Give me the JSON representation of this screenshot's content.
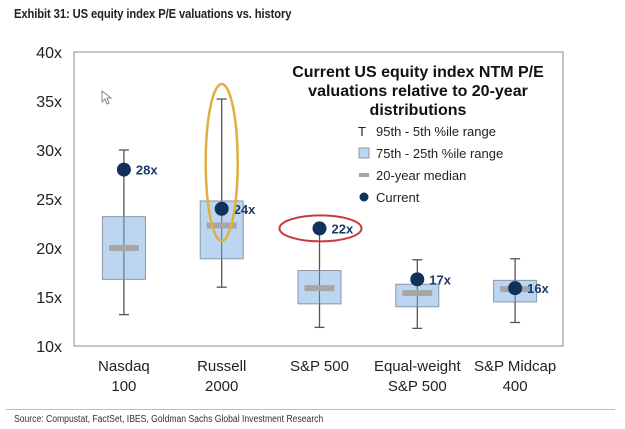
{
  "exhibit_title": "Exhibit 31: US equity index P/E valuations vs. history",
  "source": "Source: Compustat, FactSet, IBES, Goldman Sachs Global Investment Research",
  "colors": {
    "box_fill": "#bcd6f1",
    "box_stroke": "#8a97a6",
    "whisker": "#555555",
    "median": "#a6a6a6",
    "current": "#12305c",
    "label": "#1f3a66",
    "highlight_red": "#c8383c",
    "highlight_gold": "#e0b040"
  },
  "chart_data": {
    "type": "box",
    "title": "Current US equity index NTM P/E valuations relative to 20-year distributions",
    "title_lines": [
      "Current US equity index NTM P/E",
      "valuations relative to 20-year",
      "distributions"
    ],
    "xlabel": "",
    "ylabel": "",
    "ylim": [
      10,
      40
    ],
    "yticks": [
      10,
      15,
      20,
      25,
      30,
      35,
      40
    ],
    "ytick_labels": [
      "10x",
      "15x",
      "20x",
      "25x",
      "30x",
      "35x",
      "40x"
    ],
    "grid": false,
    "legend_position": "top-right",
    "legend": [
      {
        "symbol": "T",
        "label": "95th - 5th %ile range"
      },
      {
        "symbol": "box",
        "label": "75th - 25th %ile range"
      },
      {
        "symbol": "dash",
        "label": "20-year median"
      },
      {
        "symbol": "dot",
        "label": "Current"
      }
    ],
    "categories": [
      {
        "label_lines": [
          "Nasdaq",
          "100"
        ],
        "p5": 13.2,
        "p25": 16.8,
        "median": 20.0,
        "p75": 23.2,
        "p95": 30.0,
        "current": 28,
        "current_label": "28x"
      },
      {
        "label_lines": [
          "Russell",
          "2000"
        ],
        "p5": 16.0,
        "p25": 18.9,
        "median": 22.3,
        "p75": 24.8,
        "p95": 35.2,
        "current": 24,
        "current_label": "24x"
      },
      {
        "label_lines": [
          "S&P 500",
          ""
        ],
        "p5": 11.9,
        "p25": 14.3,
        "median": 15.9,
        "p75": 17.7,
        "p95": 22.0,
        "current": 22,
        "current_label": "22x"
      },
      {
        "label_lines": [
          "Equal-weight",
          "S&P 500"
        ],
        "p5": 11.8,
        "p25": 14.0,
        "median": 15.4,
        "p75": 16.3,
        "p95": 18.8,
        "current": 16.8,
        "current_label": "17x"
      },
      {
        "label_lines": [
          "S&P Midcap",
          "400"
        ],
        "p5": 12.4,
        "p25": 14.5,
        "median": 15.8,
        "p75": 16.7,
        "p95": 18.9,
        "current": 15.9,
        "current_label": "16x"
      }
    ],
    "annotations": [
      {
        "type": "ellipse",
        "color": "gold",
        "category": "Russell 2000",
        "around": "95th-5th range upper portion and current"
      },
      {
        "type": "ellipse",
        "color": "red",
        "category": "S&P 500",
        "around": "current 22x"
      }
    ]
  }
}
